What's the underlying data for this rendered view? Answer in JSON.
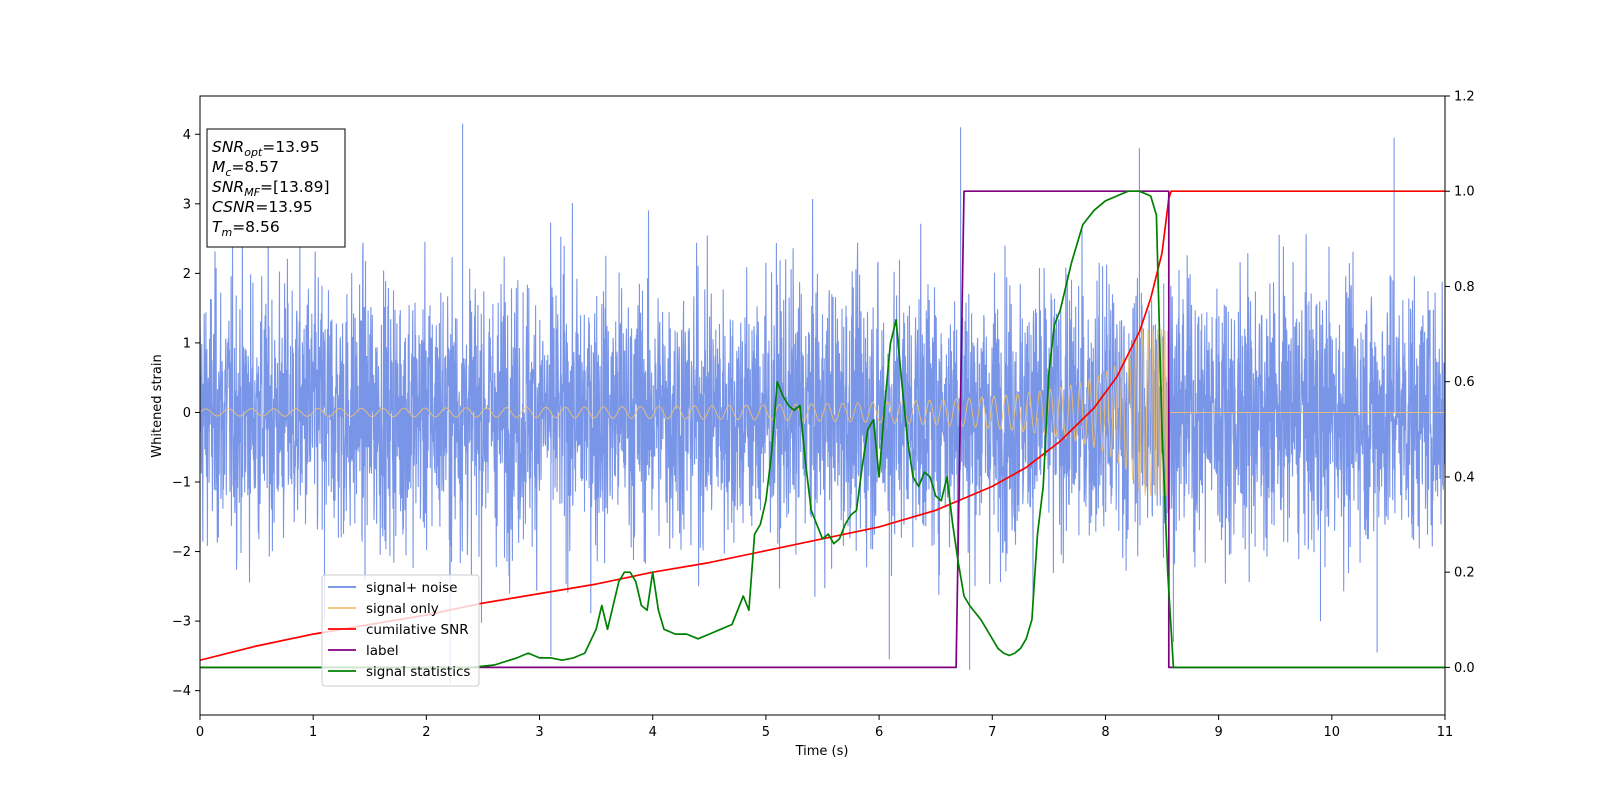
{
  "chart_data": {
    "type": "line",
    "xlabel": "Time (s)",
    "ylabel": "Whitened strain",
    "xlim": [
      0,
      11
    ],
    "ylim_left": [
      -4.35,
      4.55
    ],
    "ylim_right": [
      -0.1,
      1.2
    ],
    "x_ticks": [
      "0",
      "1",
      "2",
      "3",
      "4",
      "5",
      "6",
      "7",
      "8",
      "9",
      "10",
      "11"
    ],
    "y_left_ticks": [
      "4",
      "3",
      "2",
      "1",
      "0",
      "−1",
      "−2",
      "−3",
      "−4"
    ],
    "y_right_ticks": [
      "1.2",
      "1.0",
      "0.8",
      "0.6",
      "0.4",
      "0.2",
      "0.0"
    ],
    "grid": false,
    "legend_position": "lower-left",
    "annotations": [
      {
        "main": "SNR",
        "sub": "opt",
        "value": "=13.95"
      },
      {
        "main": "M",
        "sub": "c",
        "value": "=8.57"
      },
      {
        "main": "SNR",
        "sub": "MF",
        "value": "=[13.89]"
      },
      {
        "main": "CSNR",
        "sub": "",
        "value": "=13.95"
      },
      {
        "main": "T",
        "sub": "m",
        "value": "=8.56"
      }
    ],
    "series": [
      {
        "name": "signal+ noise",
        "axis": "left",
        "color": "#6a89e5",
        "kind": "noise",
        "sigma": 1.0,
        "x_range": [
          0,
          11
        ],
        "peaks": [
          [
            2.32,
            4.15
          ],
          [
            6.72,
            4.1
          ],
          [
            8.3,
            3.8
          ],
          [
            10.55,
            3.95
          ],
          [
            2.21,
            -3.9
          ],
          [
            6.09,
            -3.55
          ],
          [
            6.8,
            -3.7
          ],
          [
            3.1,
            -3.5
          ],
          [
            1.1,
            -3.0
          ],
          [
            8.6,
            -3.3
          ],
          [
            10.4,
            -3.45
          ],
          [
            9.9,
            -3.0
          ]
        ]
      },
      {
        "name": "signal only",
        "axis": "left",
        "color": "#f5c26b",
        "kind": "chirp",
        "merger_time": 8.56,
        "amplitude_start": 0.05,
        "amplitude_peak": 1.2
      },
      {
        "name": "cumilative SNR",
        "axis": "right",
        "color": "#ff0000",
        "x": [
          0,
          0.5,
          1,
          1.5,
          2,
          2.5,
          3,
          3.5,
          4,
          4.5,
          5,
          5.5,
          6,
          6.5,
          7,
          7.3,
          7.6,
          7.9,
          8.1,
          8.3,
          8.4,
          8.5,
          8.56,
          8.58,
          11
        ],
        "y": [
          0.015,
          0.045,
          0.07,
          0.09,
          0.11,
          0.135,
          0.155,
          0.175,
          0.2,
          0.22,
          0.245,
          0.27,
          0.295,
          0.33,
          0.38,
          0.42,
          0.475,
          0.545,
          0.61,
          0.705,
          0.775,
          0.87,
          0.985,
          1.0,
          1.0
        ]
      },
      {
        "name": "label",
        "axis": "right",
        "color": "#800080",
        "x": [
          0,
          6.68,
          6.75,
          8.5,
          8.56,
          8.56,
          11
        ],
        "y": [
          0,
          0,
          1,
          1,
          1,
          0,
          0
        ]
      },
      {
        "name": "signal statistics",
        "axis": "right",
        "color": "#008000",
        "x": [
          0,
          0.5,
          1,
          1.5,
          2,
          2.4,
          2.6,
          2.8,
          2.9,
          3.0,
          3.1,
          3.2,
          3.3,
          3.4,
          3.5,
          3.55,
          3.6,
          3.7,
          3.75,
          3.8,
          3.85,
          3.9,
          3.95,
          4.0,
          4.05,
          4.1,
          4.2,
          4.3,
          4.4,
          4.5,
          4.6,
          4.7,
          4.8,
          4.85,
          4.9,
          4.95,
          5.0,
          5.05,
          5.1,
          5.15,
          5.2,
          5.25,
          5.3,
          5.35,
          5.4,
          5.45,
          5.5,
          5.55,
          5.6,
          5.65,
          5.7,
          5.75,
          5.8,
          5.85,
          5.9,
          5.95,
          6.0,
          6.05,
          6.1,
          6.15,
          6.2,
          6.25,
          6.3,
          6.35,
          6.4,
          6.45,
          6.5,
          6.55,
          6.6,
          6.65,
          6.7,
          6.75,
          6.8,
          6.9,
          7.0,
          7.05,
          7.1,
          7.15,
          7.2,
          7.25,
          7.3,
          7.35,
          7.4,
          7.45,
          7.5,
          7.55,
          7.6,
          7.7,
          7.8,
          7.9,
          8.0,
          8.1,
          8.2,
          8.3,
          8.4,
          8.45,
          8.5,
          8.55,
          8.6,
          8.65,
          11
        ],
        "y": [
          0.0,
          0.0,
          0.0,
          0.0,
          0.0,
          0.0,
          0.005,
          0.02,
          0.03,
          0.02,
          0.02,
          0.015,
          0.02,
          0.03,
          0.08,
          0.13,
          0.08,
          0.18,
          0.2,
          0.2,
          0.18,
          0.13,
          0.12,
          0.2,
          0.12,
          0.08,
          0.07,
          0.07,
          0.06,
          0.07,
          0.08,
          0.09,
          0.15,
          0.12,
          0.28,
          0.3,
          0.35,
          0.45,
          0.6,
          0.57,
          0.55,
          0.54,
          0.55,
          0.43,
          0.33,
          0.3,
          0.27,
          0.28,
          0.26,
          0.27,
          0.3,
          0.32,
          0.33,
          0.42,
          0.5,
          0.52,
          0.4,
          0.55,
          0.68,
          0.73,
          0.6,
          0.48,
          0.4,
          0.38,
          0.41,
          0.4,
          0.36,
          0.35,
          0.4,
          0.3,
          0.22,
          0.15,
          0.13,
          0.1,
          0.06,
          0.04,
          0.03,
          0.025,
          0.03,
          0.04,
          0.06,
          0.1,
          0.28,
          0.38,
          0.62,
          0.72,
          0.75,
          0.85,
          0.93,
          0.96,
          0.98,
          0.99,
          1.0,
          1.0,
          0.99,
          0.95,
          0.5,
          0.2,
          0.0,
          0.0,
          0.0
        ]
      }
    ]
  }
}
